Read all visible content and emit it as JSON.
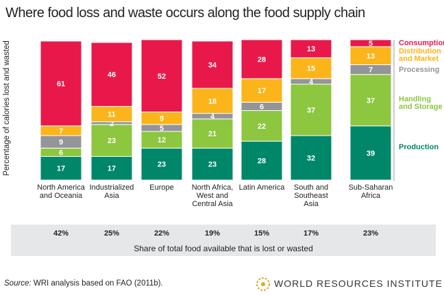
{
  "chart_data": {
    "type": "stacked_bar",
    "title": "Where food loss and waste occurs along the food supply chain",
    "y_label": "Percentage of calories lost and wasted",
    "categories": [
      "North America and Oceania",
      "Industrialized Asia",
      "Europe",
      "North Africa, West and Central Asia",
      "Latin America",
      "South and Southeast Asia",
      "Sub-Saharan Africa"
    ],
    "ylim": [
      0,
      100
    ],
    "series": [
      {
        "name": "Production",
        "color": "#00876a",
        "values": [
          17,
          17,
          23,
          23,
          28,
          32,
          39
        ]
      },
      {
        "name": "Handling and Storage",
        "color": "#8dc63f",
        "values": [
          6,
          23,
          12,
          21,
          22,
          37,
          37
        ]
      },
      {
        "name": "Processing",
        "color": "#939598",
        "values": [
          9,
          2,
          5,
          4,
          6,
          4,
          7
        ]
      },
      {
        "name": "Distribution and Market",
        "color": "#fbb41a",
        "values": [
          7,
          11,
          9,
          18,
          17,
          15,
          13
        ]
      },
      {
        "name": "Consumption",
        "color": "#e8194a",
        "values": [
          61,
          46,
          52,
          34,
          28,
          13,
          5
        ]
      }
    ],
    "share": {
      "values": [
        42,
        25,
        22,
        19,
        15,
        17,
        23
      ],
      "value_labels": [
        "42%",
        "25%",
        "22%",
        "19%",
        "15%",
        "17%",
        "23%"
      ],
      "label": "Share of total food available that is lost or wasted"
    },
    "source": {
      "label": "Source:",
      "text": "WRI analysis based on FAO (2011b)."
    },
    "logo": "WORLD RESOURCES INSTITUTE"
  }
}
